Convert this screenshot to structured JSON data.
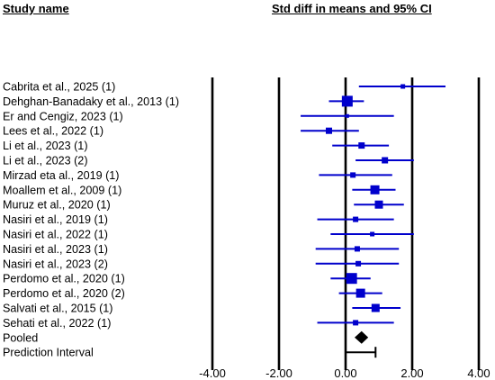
{
  "headers": {
    "study_name": "Study name",
    "ci_title": "Std diff in means and 95% CI"
  },
  "colors": {
    "study_marker": "#0000cc",
    "pooled_marker": "#000000",
    "reference_lines": "#000000"
  },
  "chart_data": {
    "type": "forest",
    "xlim": [
      -4,
      4
    ],
    "xticks": [
      -4,
      -2,
      0,
      2,
      4
    ],
    "xtick_labels": [
      "-4.00",
      "-2.00",
      "0.00",
      "2.00",
      "4.00"
    ],
    "studies": [
      {
        "name": "Cabrita et al., 2025 (1)",
        "estimate": 1.72,
        "lower": 0.4,
        "upper": 3.0,
        "weight": 5
      },
      {
        "name": "Dehghan-Banadaky et al., 2013 (1)",
        "estimate": 0.05,
        "lower": -0.5,
        "upper": 0.55,
        "weight": 12
      },
      {
        "name": "Er and Cengiz, 2023 (1)",
        "estimate": 0.05,
        "lower": -1.35,
        "upper": 1.45,
        "weight": 4
      },
      {
        "name": "Lees et al., 2022 (1)",
        "estimate": -0.5,
        "lower": -1.35,
        "upper": 0.4,
        "weight": 7
      },
      {
        "name": "Li et al., 2023 (1)",
        "estimate": 0.48,
        "lower": -0.4,
        "upper": 1.3,
        "weight": 7
      },
      {
        "name": "Li et al., 2023 (2)",
        "estimate": 1.18,
        "lower": 0.3,
        "upper": 2.05,
        "weight": 7
      },
      {
        "name": "Mirzad eta al., 2019 (1)",
        "estimate": 0.22,
        "lower": -0.8,
        "upper": 1.4,
        "weight": 6
      },
      {
        "name": "Moallem et al., 2009 (1)",
        "estimate": 0.88,
        "lower": 0.2,
        "upper": 1.5,
        "weight": 10
      },
      {
        "name": "Muruz et al., 2020 (1)",
        "estimate": 1.0,
        "lower": 0.25,
        "upper": 1.75,
        "weight": 9
      },
      {
        "name": "Nasiri et al., 2019 (1)",
        "estimate": 0.3,
        "lower": -0.85,
        "upper": 1.45,
        "weight": 6
      },
      {
        "name": "Nasiri et al., 2022 (1)",
        "estimate": 0.8,
        "lower": -0.45,
        "upper": 2.05,
        "weight": 5
      },
      {
        "name": "Nasiri et al., 2023 (1)",
        "estimate": 0.35,
        "lower": -0.9,
        "upper": 1.6,
        "weight": 6
      },
      {
        "name": "Nasiri et al., 2023 (2)",
        "estimate": 0.38,
        "lower": -0.9,
        "upper": 1.6,
        "weight": 6
      },
      {
        "name": "Perdomo et al., 2020 (1)",
        "estimate": 0.18,
        "lower": -0.45,
        "upper": 0.75,
        "weight": 12
      },
      {
        "name": "Perdomo et al., 2020 (2)",
        "estimate": 0.45,
        "lower": -0.2,
        "upper": 1.1,
        "weight": 10
      },
      {
        "name": "Salvati et al., 2015 (1)",
        "estimate": 0.9,
        "lower": 0.2,
        "upper": 1.65,
        "weight": 9
      },
      {
        "name": "Sehati et al., 2022 (1)",
        "estimate": 0.3,
        "lower": -0.85,
        "upper": 1.45,
        "weight": 6
      }
    ],
    "pooled": {
      "label": "Pooled",
      "estimate": 0.48,
      "lower": 0.27,
      "upper": 0.68
    },
    "prediction_interval": {
      "label": "Prediction Interval",
      "lower": 0.0,
      "upper": 0.9
    }
  }
}
